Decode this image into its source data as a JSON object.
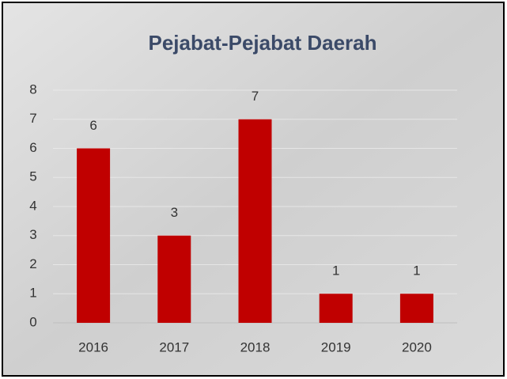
{
  "chart_data": {
    "type": "bar",
    "title": "Pejabat-Pejabat Daerah",
    "categories": [
      "2016",
      "2017",
      "2018",
      "2019",
      "2020"
    ],
    "values": [
      6,
      3,
      7,
      1,
      1
    ],
    "color": "#c00000",
    "ylim": [
      0,
      8
    ],
    "yticks": [
      0,
      1,
      2,
      3,
      4,
      5,
      6,
      7,
      8
    ],
    "grid": true,
    "data_labels": true
  }
}
